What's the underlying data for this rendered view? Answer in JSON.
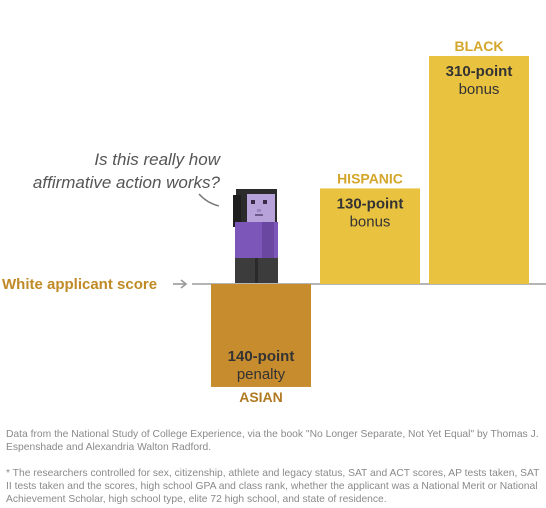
{
  "chart_data": {
    "type": "bar",
    "baseline_label": "White applicant score",
    "categories": [
      "ASIAN",
      "HISPANIC",
      "BLACK"
    ],
    "values": [
      -140,
      130,
      310
    ],
    "value_labels": [
      {
        "amount": "140-point",
        "kind": "penalty"
      },
      {
        "amount": "130-point",
        "kind": "bonus"
      },
      {
        "amount": "310-point",
        "kind": "bonus"
      }
    ],
    "ylim": [
      -140,
      310
    ],
    "grid": false
  },
  "annotation": {
    "line1": "Is this really how",
    "line2": "affirmative action works?"
  },
  "colors": {
    "penalty_bar": "#c78c2e",
    "bonus_bar": "#e9c340",
    "category_label": "#d4a62a",
    "asian_label": "#b07a22",
    "baseline_label": "#c08a26",
    "axis_line": "#b5b5b5",
    "value_text": "#333333"
  },
  "footnotes": {
    "source": "Data from the National Study of College Experience, via the book \"No Longer Separate, Not Yet Equal\" by Thomas J. Espenshade and Alexandria Walton Radford.",
    "note": "* The researchers controlled for sex, citizenship, athlete and legacy status, SAT and ACT scores, AP tests taken, SAT II tests taken and the scores, high school GPA and class rank, whether the applicant was a National Merit or National Achievement Scholar, high school type, elite 72 high school, and state of residence."
  }
}
